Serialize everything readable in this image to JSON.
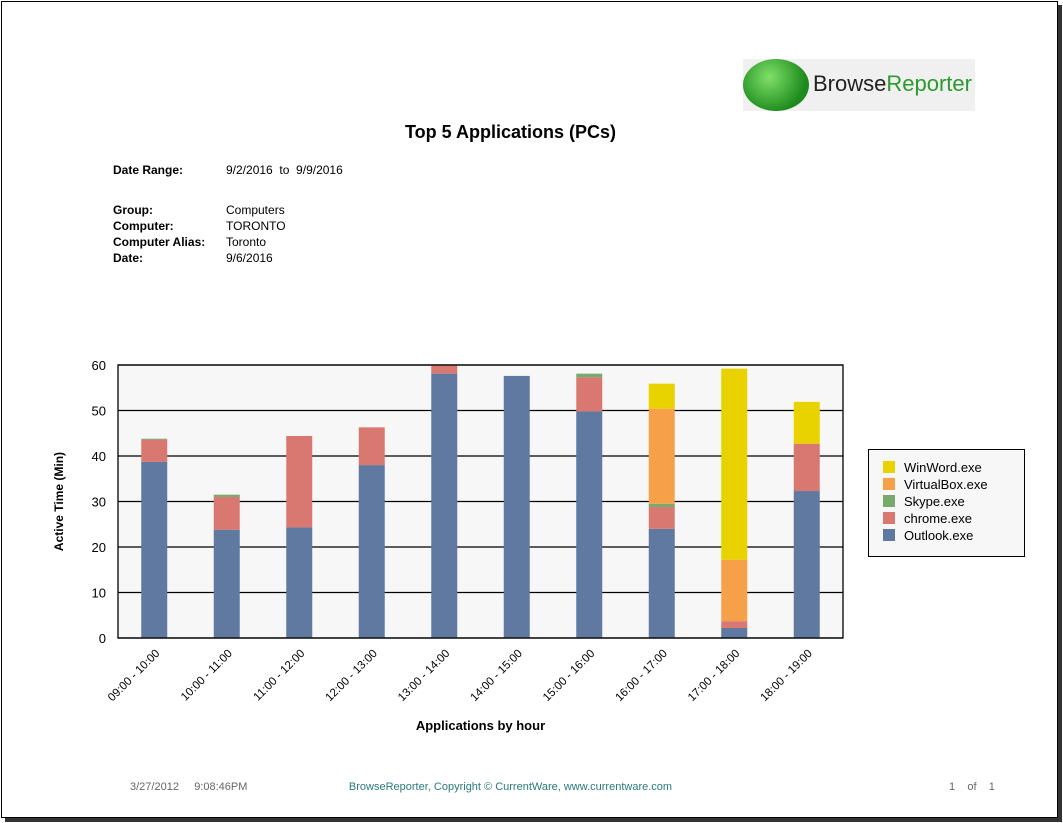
{
  "logo": {
    "text_a": "Browse",
    "text_b": "Reporter"
  },
  "title": "Top 5 Applications (PCs)",
  "info": {
    "date_range_label": "Date Range:",
    "date_range_value": "9/2/2016  to  9/9/2016",
    "group_label": "Group:",
    "group_value": "Computers",
    "computer_label": "Computer:",
    "computer_value": "TORONTO",
    "alias_label": "Computer Alias:",
    "alias_value": "Toronto",
    "date_label": "Date:",
    "date_value": "9/6/2016"
  },
  "chart_data": {
    "type": "bar",
    "stacked": true,
    "xlabel": "Applications by hour",
    "ylabel": "Active Time (Min)",
    "ylim": [
      0,
      60
    ],
    "yticks": [
      0,
      10,
      20,
      30,
      40,
      50,
      60
    ],
    "grid": true,
    "legend": "right",
    "categories": [
      "09:00 - 10:00",
      "10:00 - 11:00",
      "11:00 - 12:00",
      "12:00 - 13:00",
      "13:00 - 14:00",
      "14:00 - 15:00",
      "15:00 - 16:00",
      "16:00 - 17:00",
      "17:00 - 18:00",
      "18:00 - 19:00"
    ],
    "series": [
      {
        "name": "Outlook.exe",
        "color": "#6079a1",
        "values": [
          38.7,
          23.8,
          24.3,
          38.0,
          58.1,
          57.6,
          49.8,
          24.0,
          2.2,
          32.3
        ]
      },
      {
        "name": "chrome.exe",
        "color": "#d97870",
        "values": [
          4.9,
          7.2,
          20.1,
          8.3,
          1.9,
          0,
          7.5,
          4.8,
          1.5,
          10.4
        ]
      },
      {
        "name": "Skype.exe",
        "color": "#78aa6e",
        "values": [
          0.2,
          0.5,
          0,
          0,
          0,
          0,
          0.8,
          0.7,
          0,
          0
        ]
      },
      {
        "name": "VirtualBox.exe",
        "color": "#f7a04a",
        "values": [
          0,
          0,
          0,
          0,
          0,
          0,
          0,
          20.9,
          13.5,
          0
        ]
      },
      {
        "name": "WinWord.exe",
        "color": "#e8d200",
        "values": [
          0,
          0,
          0,
          0,
          0,
          0,
          0,
          5.5,
          42.0,
          9.2
        ]
      }
    ],
    "legend_order": [
      "WinWord.exe",
      "VirtualBox.exe",
      "Skype.exe",
      "chrome.exe",
      "Outlook.exe"
    ]
  },
  "footer": {
    "date": "3/27/2012     9:08:46PM",
    "copyright": "BrowseReporter, Copyright © CurrentWare, www.currentware.com",
    "page": "1    of    1"
  }
}
